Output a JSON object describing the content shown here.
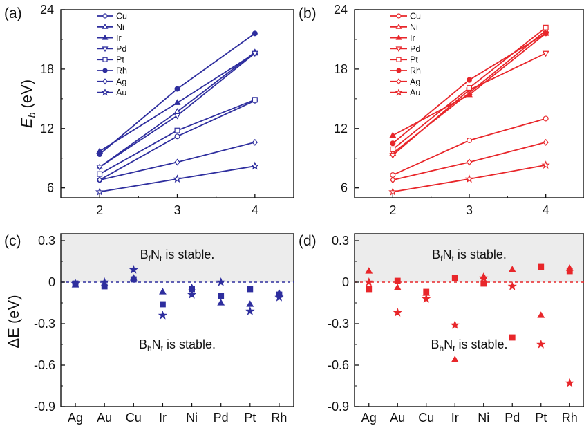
{
  "figure": {
    "top_axis_label": "E",
    "top_axis_label_sub": "b",
    "top_axis_unit": "(eV)",
    "bottom_axis_label": "ΔE (eV)"
  },
  "chart_data": [
    {
      "panel": "a",
      "panel_label": "(a)",
      "type": "line",
      "color": "#2e2e9e",
      "x": [
        2,
        3,
        4
      ],
      "xticks": [
        "2",
        "3",
        "4"
      ],
      "yticks": [
        "6",
        "12",
        "18",
        "24"
      ],
      "ylim": [
        5,
        24
      ],
      "xlim": [
        1.5,
        4.5
      ],
      "legend_position": "top-left",
      "series": [
        {
          "name": "Cu",
          "marker": "circle-open",
          "values": [
            6.8,
            11.2,
            14.8
          ]
        },
        {
          "name": "Ni",
          "marker": "triangle-up-open",
          "values": [
            8.1,
            13.7,
            19.7
          ]
        },
        {
          "name": "Ir",
          "marker": "triangle-up-filled",
          "values": [
            9.7,
            14.6,
            19.6
          ]
        },
        {
          "name": "Pd",
          "marker": "triangle-down-open",
          "values": [
            8.1,
            13.3,
            19.6
          ]
        },
        {
          "name": "Pt",
          "marker": "square-open",
          "values": [
            7.4,
            11.8,
            14.9
          ]
        },
        {
          "name": "Rh",
          "marker": "circle-filled",
          "values": [
            9.4,
            16.0,
            21.6
          ]
        },
        {
          "name": "Ag",
          "marker": "diamond-open",
          "values": [
            6.8,
            8.6,
            10.6
          ]
        },
        {
          "name": "Au",
          "marker": "star-open",
          "values": [
            5.6,
            6.9,
            8.2
          ]
        }
      ]
    },
    {
      "panel": "b",
      "panel_label": "(b)",
      "type": "line",
      "color": "#e8262a",
      "x": [
        2,
        3,
        4
      ],
      "xticks": [
        "2",
        "3",
        "4"
      ],
      "yticks": [
        "6",
        "12",
        "18",
        "24"
      ],
      "ylim": [
        5,
        24
      ],
      "xlim": [
        1.5,
        4.5
      ],
      "legend_position": "top-left",
      "series": [
        {
          "name": "Cu",
          "marker": "circle-open",
          "values": [
            7.3,
            10.8,
            13.0
          ]
        },
        {
          "name": "Ni",
          "marker": "triangle-up-open",
          "values": [
            9.5,
            15.6,
            21.9
          ]
        },
        {
          "name": "Ir",
          "marker": "triangle-up-filled",
          "values": [
            11.3,
            15.4,
            21.6
          ]
        },
        {
          "name": "Pd",
          "marker": "triangle-down-open",
          "values": [
            9.3,
            15.9,
            19.6
          ]
        },
        {
          "name": "Pt",
          "marker": "square-open",
          "values": [
            9.9,
            16.1,
            22.2
          ]
        },
        {
          "name": "Rh",
          "marker": "circle-filled",
          "values": [
            10.5,
            16.9,
            21.6
          ]
        },
        {
          "name": "Ag",
          "marker": "diamond-open",
          "values": [
            6.8,
            8.6,
            10.6
          ]
        },
        {
          "name": "Au",
          "marker": "star-open",
          "values": [
            5.6,
            6.9,
            8.3
          ]
        }
      ]
    },
    {
      "panel": "c",
      "panel_label": "(c)",
      "type": "scatter",
      "color": "#2e2e9e",
      "categories": [
        "Ag",
        "Au",
        "Cu",
        "Ir",
        "Ni",
        "Pd",
        "Pt",
        "Rh"
      ],
      "yticks": [
        "0.3",
        "0",
        "-0.3",
        "-0.6",
        "-0.9"
      ],
      "ylim": [
        -0.9,
        0.35
      ],
      "stable_region_from": 0,
      "annotation_top": "B",
      "annotation_top_sub": "f",
      "annotation_top_mid": "N",
      "annotation_top_sub2": "t",
      "annotation_top_tail": " is stable.",
      "annotation_bottom": "B",
      "annotation_bottom_sub": "h",
      "annotation_bottom_mid": "N",
      "annotation_bottom_sub2": "t",
      "annotation_bottom_tail": " is stable.",
      "series": [
        {
          "marker": "triangle-up-filled",
          "values": [
            -0.02,
            -0.01,
            0.03,
            -0.07,
            -0.04,
            -0.15,
            -0.16,
            -0.08
          ]
        },
        {
          "marker": "square-filled",
          "values": [
            -0.01,
            -0.03,
            0.02,
            -0.16,
            -0.05,
            -0.1,
            -0.05,
            -0.09
          ]
        },
        {
          "marker": "star-filled",
          "values": [
            -0.01,
            0.0,
            0.09,
            -0.24,
            -0.09,
            0.0,
            -0.21,
            -0.11
          ]
        }
      ]
    },
    {
      "panel": "d",
      "panel_label": "(d)",
      "type": "scatter",
      "color": "#e8262a",
      "categories": [
        "Ag",
        "Au",
        "Cu",
        "Ir",
        "Ni",
        "Pd",
        "Pt",
        "Rh"
      ],
      "yticks": [
        "0.3",
        "0",
        "-0.3",
        "-0.6",
        "-0.9"
      ],
      "ylim": [
        -0.9,
        0.35
      ],
      "stable_region_from": 0,
      "annotation_top": "B",
      "annotation_top_sub": "f",
      "annotation_top_mid": "N",
      "annotation_top_sub2": "t",
      "annotation_top_tail": " is stable.",
      "annotation_bottom": "B",
      "annotation_bottom_sub": "h",
      "annotation_bottom_mid": "N",
      "annotation_bottom_sub2": "t",
      "annotation_bottom_tail": " is stable.",
      "series": [
        {
          "marker": "triangle-up-filled",
          "values": [
            0.08,
            -0.04,
            -0.08,
            -0.56,
            0.04,
            0.09,
            -0.24,
            0.1
          ]
        },
        {
          "marker": "square-filled",
          "values": [
            -0.05,
            0.01,
            -0.07,
            0.03,
            -0.01,
            -0.4,
            0.11,
            0.08
          ]
        },
        {
          "marker": "star-filled",
          "values": [
            0.0,
            -0.22,
            -0.12,
            -0.31,
            0.03,
            -0.03,
            -0.45,
            -0.73
          ]
        }
      ]
    }
  ]
}
